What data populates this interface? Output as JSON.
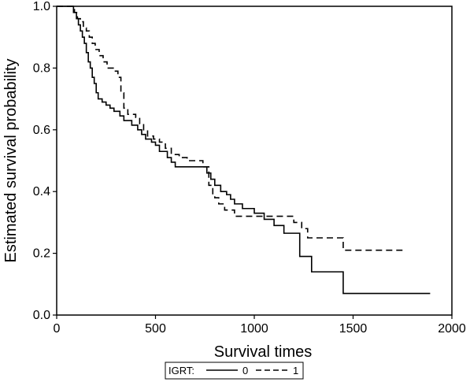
{
  "chart_data": {
    "type": "line",
    "step": true,
    "title": "",
    "xlabel": "Survival times",
    "ylabel": "Estimated survival probability",
    "xlim": [
      0,
      2000
    ],
    "ylim": [
      0,
      1
    ],
    "xticks": [
      "0",
      "500",
      "1000",
      "1500",
      "2000"
    ],
    "yticks": [
      "0.0",
      "0.2",
      "0.4",
      "0.6",
      "0.8",
      "1.0"
    ],
    "grid": false,
    "legend": {
      "placement": "bottom-center",
      "title": "IGRT:",
      "entries": [
        {
          "label": "0",
          "style": "solid"
        },
        {
          "label": "1",
          "style": "dashed"
        }
      ]
    },
    "series": [
      {
        "name": "0",
        "style": "solid",
        "color": "#000000",
        "x": [
          0,
          85,
          100,
          110,
          120,
          130,
          140,
          150,
          160,
          170,
          180,
          190,
          200,
          210,
          220,
          230,
          250,
          270,
          290,
          320,
          340,
          380,
          410,
          430,
          450,
          480,
          500,
          520,
          560,
          580,
          600,
          760,
          780,
          800,
          830,
          860,
          880,
          900,
          940,
          1000,
          1050,
          1100,
          1150,
          1230,
          1290,
          1450,
          1890
        ],
        "y": [
          1.0,
          0.98,
          0.96,
          0.94,
          0.92,
          0.9,
          0.88,
          0.85,
          0.82,
          0.8,
          0.77,
          0.75,
          0.72,
          0.7,
          0.7,
          0.69,
          0.68,
          0.67,
          0.66,
          0.645,
          0.63,
          0.615,
          0.6,
          0.585,
          0.57,
          0.56,
          0.55,
          0.53,
          0.51,
          0.495,
          0.48,
          0.46,
          0.44,
          0.42,
          0.4,
          0.39,
          0.375,
          0.36,
          0.345,
          0.33,
          0.31,
          0.29,
          0.265,
          0.19,
          0.14,
          0.07,
          0.07
        ]
      },
      {
        "name": "1",
        "style": "dashed",
        "color": "#000000",
        "x": [
          0,
          90,
          105,
          120,
          135,
          150,
          165,
          180,
          195,
          215,
          235,
          255,
          270,
          290,
          310,
          325,
          340,
          360,
          400,
          420,
          440,
          460,
          490,
          520,
          550,
          580,
          620,
          660,
          740,
          770,
          790,
          800,
          820,
          850,
          900,
          1000,
          1020,
          1200,
          1240,
          1270,
          1450,
          1750
        ],
        "y": [
          1.0,
          0.98,
          0.96,
          0.95,
          0.93,
          0.92,
          0.9,
          0.88,
          0.86,
          0.84,
          0.82,
          0.8,
          0.8,
          0.79,
          0.77,
          0.72,
          0.67,
          0.65,
          0.64,
          0.62,
          0.6,
          0.58,
          0.57,
          0.56,
          0.54,
          0.52,
          0.51,
          0.5,
          0.48,
          0.42,
          0.39,
          0.38,
          0.36,
          0.34,
          0.32,
          0.32,
          0.32,
          0.3,
          0.28,
          0.25,
          0.21,
          0.21
        ]
      }
    ]
  }
}
